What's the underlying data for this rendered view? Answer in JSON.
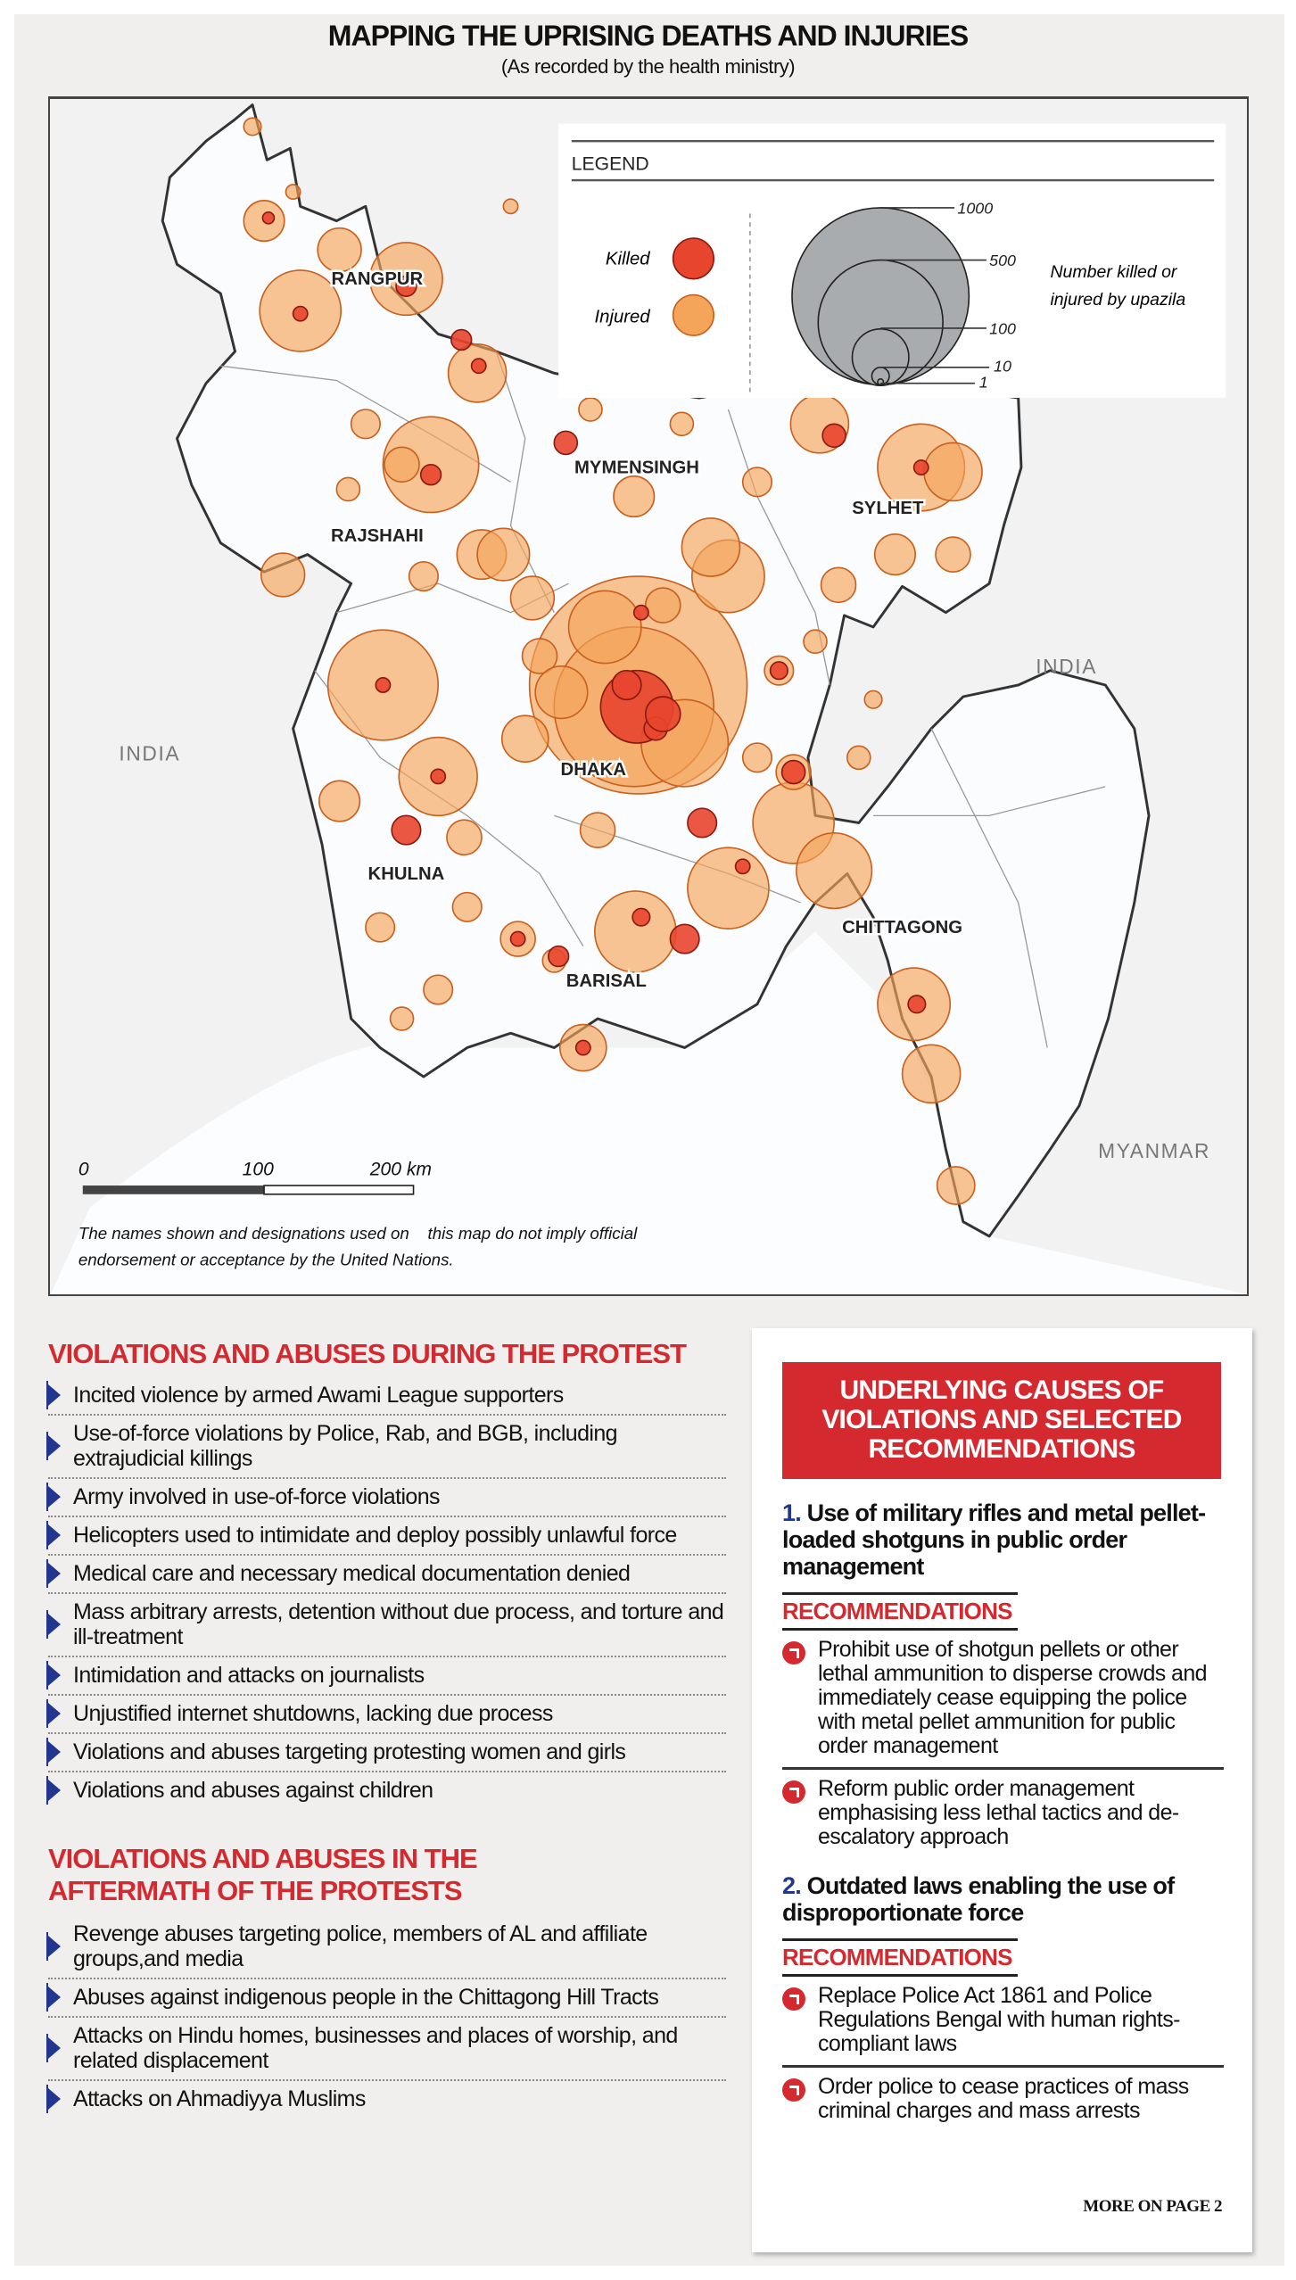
{
  "header": {
    "title": "MAPPING THE UPRISING DEATHS AND INJURIES",
    "subtitle": "(As recorded by the health ministry)"
  },
  "map": {
    "divisions": [
      "RANGPUR",
      "MYMENSINGH",
      "SYLHET",
      "RAJSHAHI",
      "DHAKA",
      "KHULNA",
      "CHITTAGONG",
      "BARISAL"
    ],
    "countries": [
      "INDIA",
      "INDIA",
      "MYANMAR"
    ],
    "legend": {
      "title": "LEGEND",
      "killed_label": "Killed",
      "injured_label": "Injured",
      "size_labels": [
        "1000",
        "500",
        "100",
        "10",
        "1"
      ],
      "size_caption_1": "Number killed or",
      "size_caption_2": "injured by upazila"
    },
    "scale": {
      "labels": [
        "0",
        "100",
        "200 km"
      ]
    },
    "disclaimer_1": "The names shown and designations used on    this map do not imply official",
    "disclaimer_2": "endorsement or acceptance by the United Nations.",
    "colors": {
      "killed": "#e8452e",
      "injured": "#f5a55a",
      "border": "#333333"
    }
  },
  "during": {
    "title": "VIOLATIONS AND ABUSES DURING THE PROTEST",
    "items": [
      "Incited violence by armed Awami League supporters",
      "Use-of-force violations by Police, Rab, and BGB, including extrajudicial killings",
      "Army involved in use-of-force violations",
      "Helicopters used to intimidate and deploy possibly unlawful force",
      "Medical care and necessary medical documentation denied",
      "Mass arbitrary arrests, detention without due process, and torture and ill-treatment",
      "Intimidation and attacks on journalists",
      "Unjustified internet shutdowns, lacking due process",
      "Violations and abuses targeting protesting women and girls",
      "Violations and abuses against children"
    ]
  },
  "after": {
    "title_1": "VIOLATIONS AND ABUSES IN THE",
    "title_2": "AFTERMATH OF THE PROTESTS",
    "items": [
      "Revenge abuses targeting police, members of AL and affiliate groups,and media",
      "Abuses against indigenous people in the Chittagong Hill Tracts",
      "Attacks on Hindu homes, businesses and places of worship, and related displacement",
      "Attacks on Ahmadiyya Muslims"
    ]
  },
  "causes": {
    "header": "UNDERLYING CAUSES OF VIOLATIONS AND SELECTED RECOMMENDATIONS",
    "rec_label": "RECOMMENDATIONS",
    "list": [
      {
        "num": "1.",
        "title": "Use of military rifles and metal pellet-loaded shotguns in public order management",
        "recs": [
          "Prohibit use of shotgun pellets or other lethal ammunition to disperse crowds and immediately cease equipping the police with metal pellet ammunition for public order management",
          "Reform public order management emphasising less lethal tactics and de-escalatory approach"
        ]
      },
      {
        "num": "2.",
        "title": "Outdated laws enabling the use of disproportionate force",
        "recs": [
          "Replace Police Act 1861 and Police Regulations Bengal with human rights-compliant laws",
          "Order police to cease practices of mass criminal charges and mass arrests"
        ]
      }
    ],
    "more": "MORE ON PAGE 2",
    "accent": "#d42a2f",
    "number_color": "#22368f"
  }
}
